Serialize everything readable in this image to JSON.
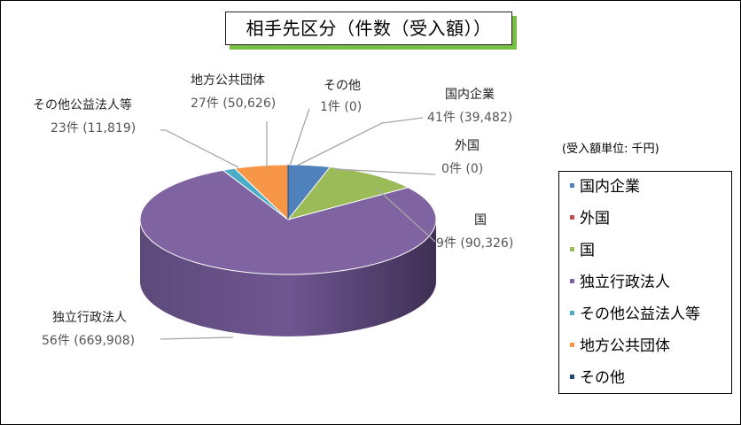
{
  "chart_data": {
    "type": "pie",
    "title": "相手先区分（件数（受入額））",
    "unit_note": "(受入額単位: 千円)",
    "legend_position": "right",
    "categories": [
      "国内企業",
      "外国",
      "国",
      "独立行政法人",
      "その他公益法人等",
      "地方公共団体",
      "その他"
    ],
    "counts": [
      41,
      0,
      9,
      56,
      23,
      27,
      1
    ],
    "values": [
      39482,
      0,
      90326,
      669908,
      11819,
      50626,
      0
    ],
    "count_labels": [
      "41件",
      "0件",
      "9件",
      "56件",
      "23件",
      "27件",
      "1件"
    ],
    "value_labels": [
      "(39,482)",
      "(0)",
      "(90,326)",
      "(669,908)",
      "(11,819)",
      "(50,626)",
      "(0)"
    ],
    "colors": [
      "#4f81bd",
      "#c0504d",
      "#9bbb59",
      "#8064a2",
      "#4bacc6",
      "#f79646",
      "#1f497d"
    ]
  }
}
